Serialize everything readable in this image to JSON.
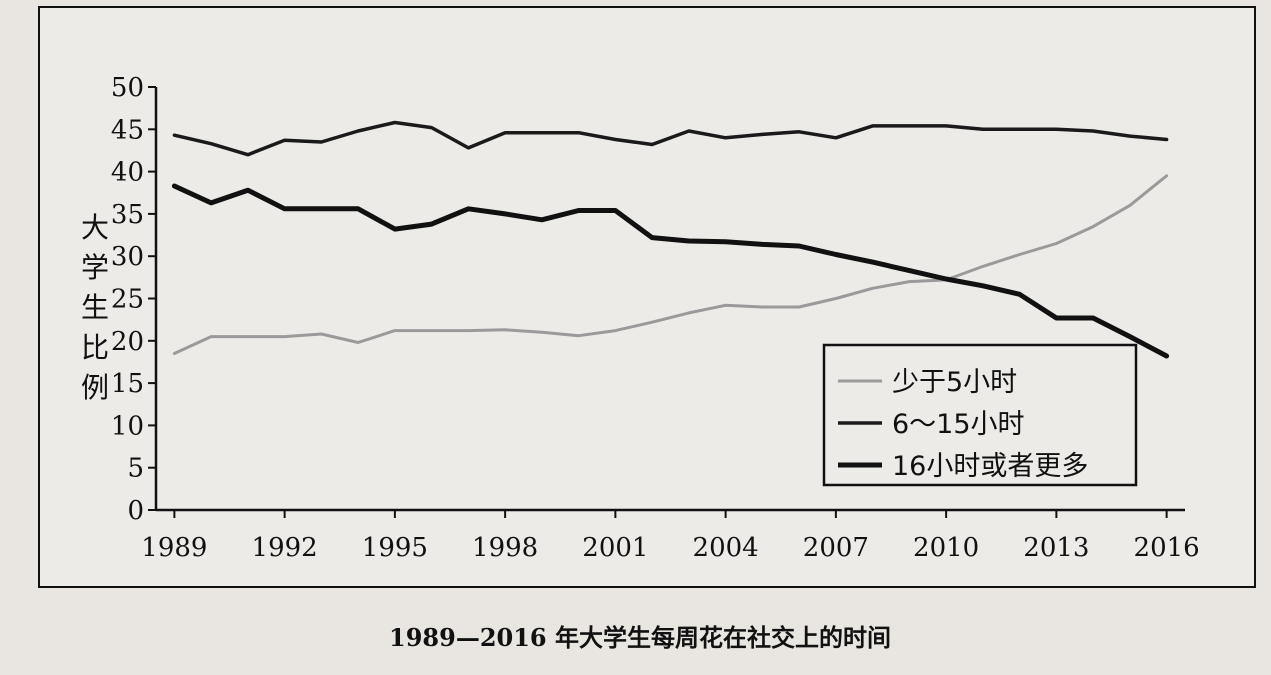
{
  "chart_data": {
    "type": "line",
    "ylabel": "大学生比例",
    "caption": "1989—2016 年大学生每周花在社交上的时间",
    "x_ticks": [
      "1989",
      "1992",
      "1995",
      "1998",
      "2001",
      "2004",
      "2007",
      "2010",
      "2013",
      "2016"
    ],
    "y_ticks": [
      "0",
      "5",
      "10",
      "15",
      "20",
      "25",
      "30",
      "35",
      "40",
      "45",
      "50"
    ],
    "xlim": [
      1988.5,
      2016.5
    ],
    "ylim": [
      0,
      50
    ],
    "legend_position": "lower-right",
    "series": [
      {
        "name": "少于5小时",
        "color": "#9a9a9a",
        "width": 3,
        "points": [
          [
            1989,
            18.5
          ],
          [
            1990,
            20.5
          ],
          [
            1991,
            20.5
          ],
          [
            1992,
            20.5
          ],
          [
            1993,
            20.8
          ],
          [
            1994,
            19.8
          ],
          [
            1995,
            21.2
          ],
          [
            1996,
            21.2
          ],
          [
            1997,
            21.2
          ],
          [
            1998,
            21.3
          ],
          [
            1999,
            21.0
          ],
          [
            2000,
            20.6
          ],
          [
            2001,
            21.2
          ],
          [
            2002,
            22.2
          ],
          [
            2003,
            23.3
          ],
          [
            2004,
            24.2
          ],
          [
            2005,
            24.0
          ],
          [
            2006,
            24.0
          ],
          [
            2007,
            25.0
          ],
          [
            2008,
            26.2
          ],
          [
            2009,
            27.0
          ],
          [
            2010,
            27.2
          ],
          [
            2011,
            28.8
          ],
          [
            2012,
            30.2
          ],
          [
            2013,
            31.5
          ],
          [
            2014,
            33.5
          ],
          [
            2015,
            36.0
          ],
          [
            2016,
            39.5
          ]
        ]
      },
      {
        "name": "6～15小时",
        "color": "#1a1a1a",
        "width": 3.5,
        "points": [
          [
            1989,
            44.3
          ],
          [
            1990,
            43.3
          ],
          [
            1991,
            42.0
          ],
          [
            1992,
            43.7
          ],
          [
            1993,
            43.5
          ],
          [
            1994,
            44.8
          ],
          [
            1995,
            45.8
          ],
          [
            1996,
            45.2
          ],
          [
            1997,
            42.8
          ],
          [
            1998,
            44.6
          ],
          [
            1999,
            44.6
          ],
          [
            2000,
            44.6
          ],
          [
            2001,
            43.8
          ],
          [
            2002,
            43.2
          ],
          [
            2003,
            44.8
          ],
          [
            2004,
            44.0
          ],
          [
            2005,
            44.4
          ],
          [
            2006,
            44.7
          ],
          [
            2007,
            44.0
          ],
          [
            2008,
            45.4
          ],
          [
            2009,
            45.4
          ],
          [
            2010,
            45.4
          ],
          [
            2011,
            45.0
          ],
          [
            2012,
            45.0
          ],
          [
            2013,
            45.0
          ],
          [
            2014,
            44.8
          ],
          [
            2015,
            44.2
          ],
          [
            2016,
            43.8
          ]
        ]
      },
      {
        "name": "16小时或者更多",
        "color": "#111111",
        "width": 5,
        "points": [
          [
            1989,
            38.3
          ],
          [
            1990,
            36.3
          ],
          [
            1991,
            37.8
          ],
          [
            1992,
            35.6
          ],
          [
            1993,
            35.6
          ],
          [
            1994,
            35.6
          ],
          [
            1995,
            33.2
          ],
          [
            1996,
            33.8
          ],
          [
            1997,
            35.6
          ],
          [
            1998,
            35.0
          ],
          [
            1999,
            34.3
          ],
          [
            2000,
            35.4
          ],
          [
            2001,
            35.4
          ],
          [
            2002,
            32.2
          ],
          [
            2003,
            31.8
          ],
          [
            2004,
            31.7
          ],
          [
            2005,
            31.4
          ],
          [
            2006,
            31.2
          ],
          [
            2007,
            30.2
          ],
          [
            2008,
            29.3
          ],
          [
            2009,
            28.3
          ],
          [
            2010,
            27.3
          ],
          [
            2011,
            26.5
          ],
          [
            2012,
            25.5
          ],
          [
            2013,
            22.7
          ],
          [
            2014,
            22.7
          ],
          [
            2015,
            20.5
          ],
          [
            2016,
            18.2
          ]
        ]
      }
    ]
  }
}
